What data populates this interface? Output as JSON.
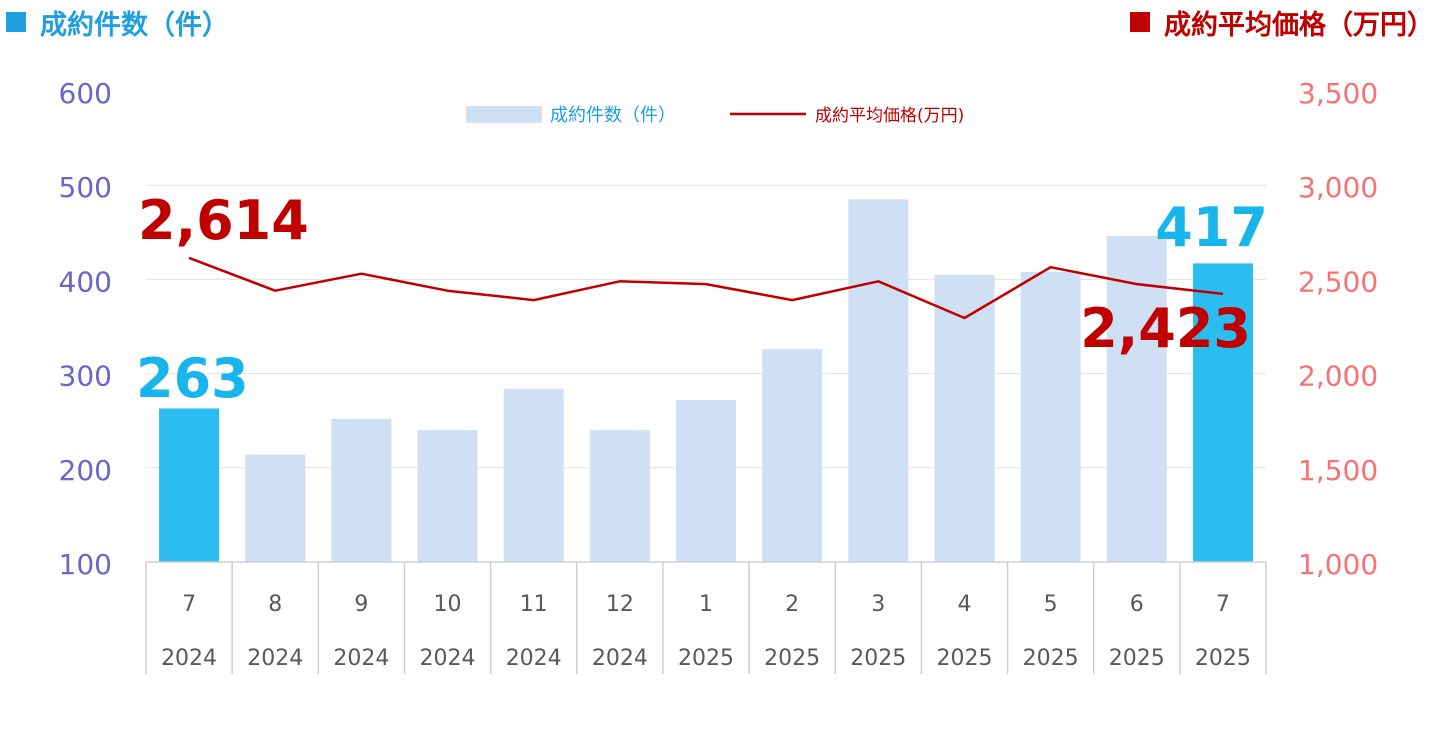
{
  "headers": {
    "left": "成約件数（件）",
    "right": "成約平均価格（万円）"
  },
  "colors": {
    "bar_normal": "#cfe0f4",
    "bar_highlight": "#2cbdf0",
    "line": "#c00000",
    "left_axis": "#6a67c8",
    "right_axis": "#f77272",
    "header_left": "#1f9fe0",
    "header_right": "#c00000",
    "callout_count": "#18b4ec",
    "callout_price": "#c00000"
  },
  "chart_data": {
    "type": "bar",
    "categories": [
      {
        "month": "7",
        "year": "2024"
      },
      {
        "month": "8",
        "year": "2024"
      },
      {
        "month": "9",
        "year": "2024"
      },
      {
        "month": "10",
        "year": "2024"
      },
      {
        "month": "11",
        "year": "2024"
      },
      {
        "month": "12",
        "year": "2024"
      },
      {
        "month": "1",
        "year": "2025"
      },
      {
        "month": "2",
        "year": "2025"
      },
      {
        "month": "3",
        "year": "2025"
      },
      {
        "month": "4",
        "year": "2025"
      },
      {
        "month": "5",
        "year": "2025"
      },
      {
        "month": "6",
        "year": "2025"
      },
      {
        "month": "7",
        "year": "2025"
      }
    ],
    "series": [
      {
        "name": "成約件数（件）",
        "type": "bar",
        "axis": "left",
        "values": [
          263,
          214,
          252,
          240,
          284,
          240,
          272,
          326,
          485,
          405,
          408,
          446,
          417
        ],
        "highlight": [
          true,
          false,
          false,
          false,
          false,
          false,
          false,
          false,
          false,
          false,
          false,
          false,
          true
        ]
      },
      {
        "name": "成約平均価格(万円)",
        "type": "line",
        "axis": "right",
        "values": [
          2614,
          2440,
          2530,
          2440,
          2390,
          2490,
          2475,
          2390,
          2490,
          2295,
          2565,
          2475,
          2423
        ]
      }
    ],
    "left_axis": {
      "min": 100,
      "max": 600,
      "step": 100,
      "ticks": [
        "100",
        "200",
        "300",
        "400",
        "500",
        "600"
      ]
    },
    "right_axis": {
      "min": 1000,
      "max": 3500,
      "step": 500,
      "ticks": [
        "1,000",
        "1,500",
        "2,000",
        "2,500",
        "3,000",
        "3,500"
      ]
    },
    "legend": {
      "placement": "top-center",
      "bar_label": "成約件数（件）",
      "line_label": "成約平均価格(万円)"
    },
    "callouts": {
      "count_first": "263",
      "count_last": "417",
      "price_first": "2,614",
      "price_last": "2,423"
    },
    "gridlines": true
  }
}
